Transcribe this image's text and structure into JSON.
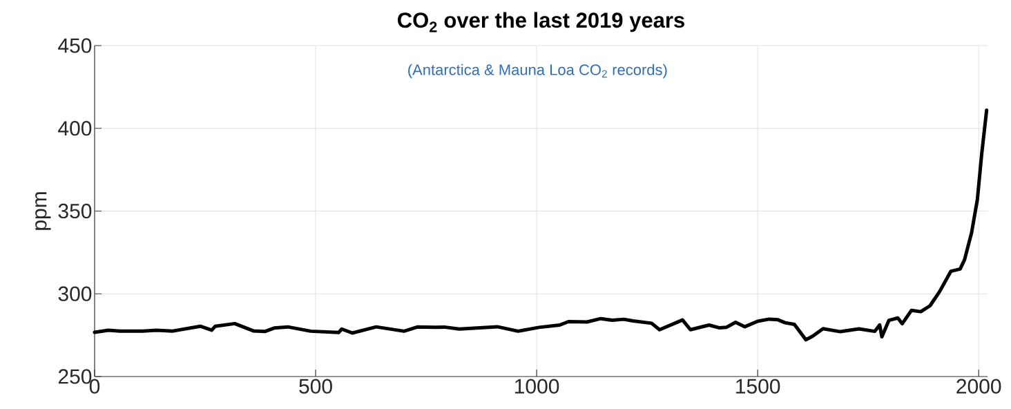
{
  "chart_data": {
    "type": "line",
    "title": "CO$_{2}$ over the last 2019 years",
    "ylabel": "ppm",
    "annotations": [
      "(Antarctica & Mauna Loa CO$_{2}$ records)"
    ],
    "x": [
      0,
      31,
      57,
      109,
      140,
      177,
      239,
      265,
      273,
      317,
      359,
      385,
      406,
      437,
      489,
      552,
      559,
      583,
      637,
      700,
      731,
      770,
      791,
      825,
      911,
      958,
      1005,
      1052,
      1072,
      1114,
      1145,
      1171,
      1197,
      1218,
      1260,
      1278,
      1330,
      1348,
      1390,
      1414,
      1429,
      1450,
      1471,
      1500,
      1526,
      1546,
      1562,
      1583,
      1609,
      1624,
      1648,
      1687,
      1729,
      1765,
      1776,
      1781,
      1797,
      1817,
      1827,
      1848,
      1869,
      1890,
      1911,
      1937,
      1958,
      1968,
      1984,
      1997,
      2007,
      2018
    ],
    "series": [
      {
        "color": "#000000",
        "values": [
          276.7,
          278,
          277.5,
          277.5,
          278,
          277.5,
          280.4,
          278,
          280.4,
          282,
          277.6,
          277.2,
          279.3,
          280,
          277.4,
          276.6,
          278.7,
          276.3,
          280,
          277.4,
          280,
          279.7,
          279.9,
          278.7,
          280.1,
          277.4,
          279.7,
          281.1,
          283.2,
          283,
          285,
          284,
          284.6,
          283.6,
          282.2,
          278.3,
          284.2,
          278.3,
          281.1,
          279.4,
          279.7,
          282.8,
          280.1,
          283.4,
          284.7,
          284.3,
          282.5,
          281.5,
          272.2,
          274.3,
          278.9,
          277.1,
          278.8,
          277.3,
          281.2,
          274,
          284,
          285.4,
          281.9,
          290,
          289.2,
          292.8,
          301.1,
          313.6,
          315,
          320.6,
          337,
          357,
          385,
          411
        ]
      }
    ],
    "xlim": [
      0,
      2020
    ],
    "ylim": [
      250,
      450
    ],
    "xticks": [
      0,
      500,
      1000,
      1500,
      2000
    ],
    "yticks": [
      250,
      300,
      350,
      400,
      450
    ],
    "grid": true
  }
}
